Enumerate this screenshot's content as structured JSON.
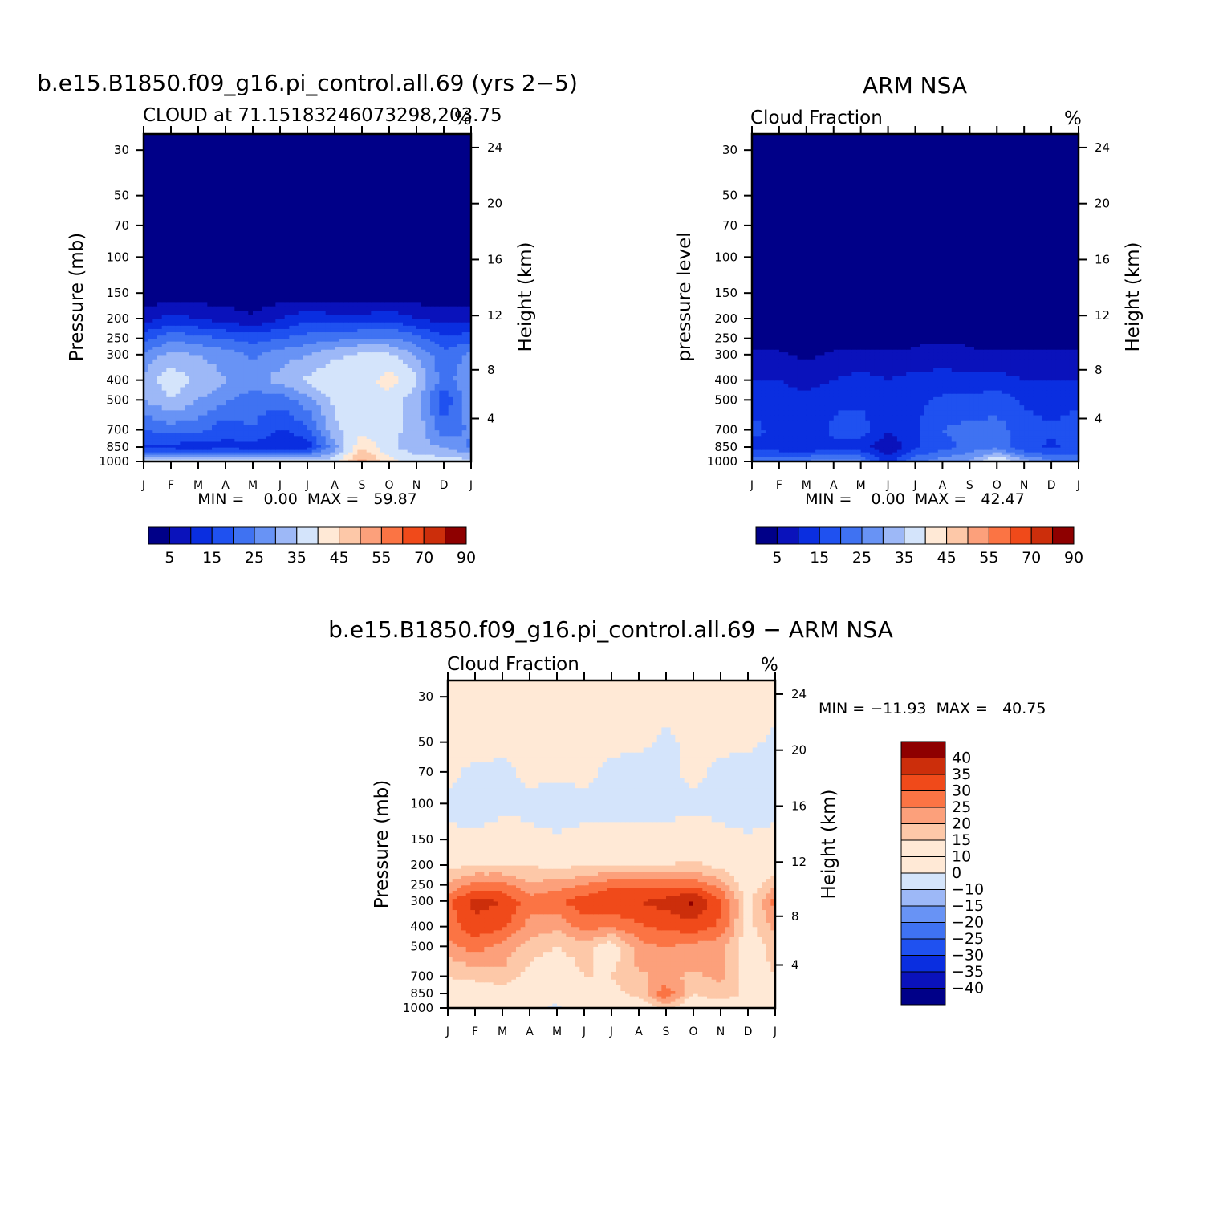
{
  "colors": {
    "palette": [
      "#000088",
      "#0a12bb",
      "#0a2ee0",
      "#1f51f0",
      "#3f72f2",
      "#6893f5",
      "#9db8f7",
      "#d4e4fb",
      "#ffe9d6",
      "#fdc8a8",
      "#fca07b",
      "#fb7444",
      "#f04a1a",
      "#cc2e0b",
      "#8e0000"
    ],
    "diff_palette": [
      "#000088",
      "#0a12bb",
      "#0a2ee0",
      "#1f51f0",
      "#3f72f2",
      "#6893f5",
      "#9db8f7",
      "#d4e4fb",
      "#ffe9d6",
      "#fdc8a8",
      "#fca07b",
      "#fb7444",
      "#f04a1a",
      "#cc2e0b",
      "#8e0000"
    ]
  },
  "chart_data": [
    {
      "type": "heatmap",
      "title": "b.e15.B1850.f09_g16.pi_control.all.69 (yrs 2−5)",
      "subtitle": "CLOUD at 71.15183246073298,203.75",
      "units": "%",
      "ylabel": "Pressure (mb)",
      "y2label": "Height (km)",
      "x_ticks": [
        "J",
        "F",
        "M",
        "A",
        "M",
        "J",
        "J",
        "A",
        "S",
        "O",
        "N",
        "D",
        "J"
      ],
      "y_ticks": [
        "30",
        "50",
        "70",
        "100",
        "150",
        "200",
        "250",
        "300",
        "400",
        "500",
        "700",
        "850",
        "1000"
      ],
      "y2_ticks": [
        "24",
        "20",
        "16",
        "12",
        "8",
        "4"
      ],
      "min_max": "MIN =    0.00  MAX =   59.87",
      "colorbar_labels": [
        "5",
        "15",
        "25",
        "35",
        "45",
        "55",
        "70",
        "90"
      ],
      "colorbar_levels": [
        5,
        10,
        15,
        20,
        25,
        30,
        35,
        40,
        45,
        50,
        55,
        60,
        70,
        80,
        90
      ],
      "ylim": [
        1000,
        25
      ],
      "y_levels": [
        1000,
        850,
        700,
        500,
        400,
        300,
        250,
        200,
        150,
        100,
        70,
        50,
        30
      ],
      "months": [
        "J",
        "F",
        "M",
        "A",
        "M",
        "J",
        "J",
        "A",
        "S",
        "O",
        "N",
        "D",
        "J"
      ],
      "z": [
        [
          38,
          38,
          38,
          38,
          38,
          38,
          38,
          38,
          52,
          42,
          38,
          38,
          38
        ],
        [
          14,
          13,
          12,
          14,
          12,
          12,
          12,
          28,
          45,
          36,
          32,
          30,
          24
        ],
        [
          20,
          22,
          22,
          16,
          20,
          14,
          18,
          34,
          38,
          36,
          34,
          22,
          26
        ],
        [
          30,
          35,
          30,
          26,
          22,
          22,
          28,
          36,
          40,
          38,
          32,
          16,
          28
        ],
        [
          32,
          38,
          34,
          30,
          28,
          32,
          36,
          40,
          38,
          42,
          36,
          22,
          30
        ],
        [
          26,
          32,
          30,
          28,
          24,
          28,
          30,
          34,
          36,
          36,
          30,
          22,
          26
        ],
        [
          18,
          24,
          22,
          20,
          18,
          20,
          22,
          24,
          26,
          26,
          22,
          16,
          18
        ],
        [
          8,
          12,
          10,
          8,
          6,
          10,
          14,
          12,
          12,
          14,
          10,
          8,
          8
        ],
        [
          1,
          2,
          2,
          2,
          1,
          2,
          2,
          2,
          2,
          2,
          2,
          1,
          1
        ],
        [
          0,
          0,
          0,
          0,
          0,
          0,
          0,
          0,
          0,
          0,
          0,
          0,
          0
        ],
        [
          0,
          0,
          0,
          0,
          0,
          0,
          0,
          0,
          0,
          0,
          0,
          0,
          0
        ],
        [
          0,
          0,
          0,
          0,
          0,
          0,
          0,
          0,
          0,
          0,
          0,
          0,
          0
        ],
        [
          0,
          0,
          0,
          0,
          0,
          0,
          0,
          0,
          0,
          0,
          0,
          0,
          0
        ]
      ]
    },
    {
      "type": "heatmap",
      "title": "ARM NSA",
      "subtitle": "Cloud Fraction",
      "units": "%",
      "ylabel": "pressure level",
      "y2label": "Height (km)",
      "x_ticks": [
        "J",
        "F",
        "M",
        "A",
        "M",
        "J",
        "J",
        "A",
        "S",
        "O",
        "N",
        "D",
        "J"
      ],
      "y_ticks": [
        "30",
        "50",
        "70",
        "100",
        "150",
        "200",
        "250",
        "300",
        "400",
        "500",
        "700",
        "850",
        "1000"
      ],
      "y2_ticks": [
        "24",
        "20",
        "16",
        "12",
        "8",
        "4"
      ],
      "min_max": "MIN =    0.00  MAX =   42.47",
      "colorbar_labels": [
        "5",
        "15",
        "25",
        "35",
        "45",
        "55",
        "70",
        "90"
      ],
      "colorbar_levels": [
        5,
        10,
        15,
        20,
        25,
        30,
        35,
        40,
        45,
        50,
        55,
        60,
        70,
        80,
        90
      ],
      "ylim": [
        1000,
        25
      ],
      "y_levels": [
        1000,
        850,
        700,
        500,
        400,
        300,
        250,
        200,
        150,
        100,
        70,
        50,
        30
      ],
      "months": [
        "J",
        "F",
        "M",
        "A",
        "M",
        "J",
        "J",
        "A",
        "S",
        "O",
        "N",
        "D",
        "J"
      ],
      "z": [
        [
          22,
          24,
          26,
          28,
          26,
          12,
          24,
          28,
          30,
          42,
          32,
          26,
          24
        ],
        [
          14,
          12,
          10,
          14,
          12,
          6,
          14,
          18,
          22,
          24,
          16,
          14,
          16
        ],
        [
          16,
          14,
          12,
          16,
          18,
          10,
          14,
          20,
          22,
          22,
          18,
          16,
          18
        ],
        [
          14,
          12,
          12,
          14,
          14,
          12,
          14,
          16,
          16,
          18,
          14,
          12,
          14
        ],
        [
          10,
          10,
          8,
          10,
          12,
          10,
          12,
          12,
          12,
          12,
          10,
          10,
          10
        ],
        [
          6,
          6,
          4,
          6,
          6,
          6,
          6,
          8,
          6,
          6,
          6,
          6,
          6
        ],
        [
          2,
          2,
          2,
          2,
          2,
          2,
          4,
          4,
          4,
          2,
          2,
          2,
          2
        ],
        [
          0,
          0,
          0,
          0,
          0,
          0,
          0,
          0,
          0,
          0,
          0,
          0,
          0
        ],
        [
          0,
          0,
          0,
          0,
          0,
          0,
          0,
          0,
          0,
          0,
          0,
          0,
          0
        ],
        [
          0,
          0,
          0,
          0,
          0,
          0,
          0,
          0,
          0,
          0,
          0,
          0,
          0
        ],
        [
          0,
          0,
          0,
          0,
          0,
          0,
          0,
          0,
          0,
          0,
          0,
          0,
          0
        ],
        [
          0,
          0,
          0,
          0,
          0,
          0,
          0,
          0,
          0,
          0,
          0,
          0,
          0
        ],
        [
          0,
          0,
          0,
          0,
          0,
          0,
          0,
          0,
          0,
          0,
          0,
          0,
          0
        ]
      ]
    },
    {
      "type": "heatmap",
      "title": "b.e15.B1850.f09_g16.pi_control.all.69 − ARM NSA",
      "subtitle": "Cloud Fraction",
      "units": "%",
      "ylabel": "Pressure (mb)",
      "y2label": "Height (km)",
      "x_ticks": [
        "J",
        "F",
        "M",
        "A",
        "M",
        "J",
        "J",
        "A",
        "S",
        "O",
        "N",
        "D",
        "J"
      ],
      "y_ticks": [
        "30",
        "50",
        "70",
        "100",
        "150",
        "200",
        "250",
        "300",
        "400",
        "500",
        "700",
        "850",
        "1000"
      ],
      "y2_ticks": [
        "24",
        "20",
        "16",
        "12",
        "8",
        "4"
      ],
      "min_max": "MIN = −11.93  MAX =   40.75",
      "colorbar_labels": [
        "40",
        "35",
        "30",
        "25",
        "20",
        "15",
        "10",
        "0",
        "−10",
        "−15",
        "−20",
        "−25",
        "−30",
        "−35",
        "−40"
      ],
      "colorbar_levels": [
        -40,
        -35,
        -30,
        -25,
        -20,
        -15,
        -10,
        0,
        10,
        15,
        20,
        25,
        30,
        35,
        40
      ],
      "ylim": [
        1000,
        25
      ],
      "y_levels": [
        1000,
        850,
        700,
        500,
        400,
        300,
        250,
        200,
        150,
        100,
        70,
        50,
        30
      ],
      "months": [
        "J",
        "F",
        "M",
        "A",
        "M",
        "J",
        "J",
        "A",
        "S",
        "O",
        "N",
        "D",
        "J"
      ],
      "z": [
        [
          8,
          2,
          4,
          4,
          -2,
          6,
          4,
          2,
          12,
          2,
          4,
          6,
          4
        ],
        [
          6,
          4,
          6,
          2,
          4,
          8,
          8,
          12,
          24,
          10,
          14,
          8,
          6
        ],
        [
          10,
          12,
          14,
          8,
          6,
          10,
          10,
          14,
          16,
          14,
          16,
          8,
          10
        ],
        [
          18,
          22,
          18,
          12,
          10,
          12,
          6,
          18,
          20,
          18,
          16,
          6,
          12
        ],
        [
          22,
          28,
          26,
          18,
          16,
          22,
          20,
          24,
          26,
          28,
          24,
          8,
          16
        ],
        [
          24,
          32,
          30,
          22,
          24,
          28,
          30,
          30,
          32,
          36,
          26,
          8,
          22
        ],
        [
          16,
          22,
          22,
          16,
          18,
          20,
          24,
          24,
          24,
          24,
          18,
          6,
          14
        ],
        [
          8,
          10,
          10,
          10,
          8,
          10,
          10,
          10,
          10,
          12,
          8,
          4,
          6
        ],
        [
          2,
          2,
          4,
          2,
          1,
          2,
          2,
          2,
          2,
          4,
          2,
          1,
          2
        ],
        [
          -2,
          -4,
          -2,
          -2,
          -4,
          -2,
          -2,
          -2,
          -2,
          -2,
          -2,
          -4,
          -2
        ],
        [
          2,
          -2,
          -2,
          2,
          2,
          2,
          -2,
          -4,
          -2,
          2,
          -2,
          -4,
          -4
        ],
        [
          2,
          4,
          2,
          2,
          2,
          2,
          2,
          2,
          -2,
          2,
          2,
          2,
          -2
        ],
        [
          4,
          4,
          4,
          4,
          4,
          4,
          4,
          4,
          4,
          4,
          4,
          4,
          4
        ]
      ]
    }
  ]
}
